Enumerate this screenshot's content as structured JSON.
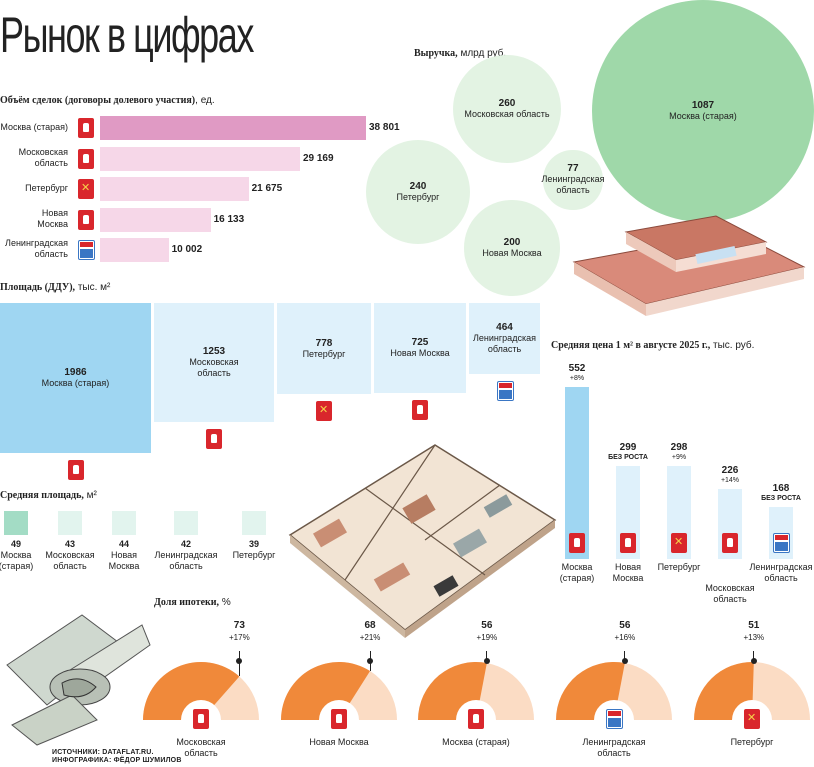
{
  "title": "Рынок в цифрах",
  "deals": {
    "label_bold": "Объём сделок (договоры долевого участия)",
    "label_unit": ", ед.",
    "rows": [
      {
        "name": "Москва (старая)",
        "value": 38801,
        "display": "38 801",
        "crest": "red",
        "color": "#e09ac4"
      },
      {
        "name": "Московская область",
        "value": 29169,
        "display": "29 169",
        "crest": "red",
        "color": "#f6d7e8"
      },
      {
        "name": "Петербург",
        "value": 21675,
        "display": "21 675",
        "crest": "spb",
        "color": "#f6d7e8"
      },
      {
        "name": "Новая Москва",
        "value": 16133,
        "display": "16 133",
        "crest": "red",
        "color": "#f6d7e8"
      },
      {
        "name": "Ленинградская область",
        "value": 10002,
        "display": "10 002",
        "crest": "blue",
        "color": "#f6d7e8"
      }
    ]
  },
  "revenue": {
    "label_bold": "Выручка,",
    "label_unit": " млрд руб.",
    "items": [
      {
        "name": "Москва (старая)",
        "value": 1087,
        "color": "#9fd8a9"
      },
      {
        "name": "Московская область",
        "value": 260,
        "color": "#e3f3e3"
      },
      {
        "name": "Петербург",
        "value": 240,
        "color": "#e3f3e3"
      },
      {
        "name": "Новая Москва",
        "value": 200,
        "color": "#e3f3e3"
      },
      {
        "name": "Ленинградская область",
        "value": 77,
        "color": "#e3f3e3"
      }
    ]
  },
  "area": {
    "label_bold": "Площадь (ДДУ),",
    "label_unit": " тыс. м²",
    "items": [
      {
        "name": "Москва (старая)",
        "value": 1986,
        "color": "#9fd6f2",
        "crest": "red"
      },
      {
        "name": "Московская область",
        "value": 1253,
        "color": "#dff1fb",
        "crest": "red"
      },
      {
        "name": "Петербург",
        "value": 778,
        "color": "#dff1fb",
        "crest": "spb"
      },
      {
        "name": "Новая Москва",
        "value": 725,
        "color": "#dff1fb",
        "crest": "red"
      },
      {
        "name": "Ленинградская область",
        "value": 464,
        "color": "#dff1fb",
        "crest": "blue"
      }
    ]
  },
  "avg_area": {
    "label_bold": "Средняя площадь,",
    "label_unit": " м²",
    "items": [
      {
        "name": "Москва (старая)",
        "value": 49,
        "color": "#a3dcc5"
      },
      {
        "name": "Московская область",
        "value": 43,
        "color": "#e2f4ee"
      },
      {
        "name": "Новая Москва",
        "value": 44,
        "color": "#e2f4ee"
      },
      {
        "name": "Ленинградская область",
        "value": 42,
        "color": "#e2f4ee"
      },
      {
        "name": "Петербург",
        "value": 39,
        "color": "#e2f4ee"
      }
    ]
  },
  "price": {
    "label_bold": "Средняя цена 1 м² в августе 2025 г.,",
    "label_unit": " тыс. руб.",
    "ylim": [
      0,
      552
    ],
    "items": [
      {
        "name": "Москва (старая)",
        "value": 552,
        "change": "+8%",
        "color": "#9fd6f2",
        "crest": "red"
      },
      {
        "name": "Новая Москва",
        "value": 299,
        "change": "БЕЗ РОСТА",
        "color": "#dff1fb",
        "crest": "red"
      },
      {
        "name": "Петербург",
        "value": 298,
        "change": "+9%",
        "color": "#dff1fb",
        "crest": "spb"
      },
      {
        "name": "Московская область",
        "value": 226,
        "change": "+14%",
        "color": "#dff1fb",
        "crest": "red"
      },
      {
        "name": "Ленинградская область",
        "value": 168,
        "change": "БЕЗ РОСТА",
        "color": "#dff1fb",
        "crest": "blue"
      }
    ]
  },
  "mortgage": {
    "label_bold": "Доля ипотеки,",
    "label_unit": " %",
    "items": [
      {
        "name": "Московская область",
        "value": 73,
        "change": "+17%",
        "crest": "red"
      },
      {
        "name": "Новая Москва",
        "value": 68,
        "change": "+21%",
        "crest": "red"
      },
      {
        "name": "Москва (старая)",
        "value": 56,
        "change": "+19%",
        "crest": "red"
      },
      {
        "name": "Ленинградская область",
        "value": 56,
        "change": "+16%",
        "crest": "blue"
      },
      {
        "name": "Петербург",
        "value": 51,
        "change": "+13%",
        "crest": "spb"
      }
    ],
    "fill_color": "#f0893a",
    "rest_color": "#fbdcc4"
  },
  "sources": {
    "line1": "ИСТОЧНИКИ: DATAFLAT.RU.",
    "line2": "ИНФОГРАФИКА: ФЁДОР ШУМИЛОВ"
  },
  "chart_data": [
    {
      "type": "bar",
      "title": "Объём сделок (договоры долевого участия), ед.",
      "categories": [
        "Москва (старая)",
        "Московская область",
        "Петербург",
        "Новая Москва",
        "Ленинградская область"
      ],
      "values": [
        38801,
        29169,
        21675,
        16133,
        10002
      ]
    },
    {
      "type": "bubble",
      "title": "Выручка, млрд руб.",
      "categories": [
        "Москва (старая)",
        "Московская область",
        "Петербург",
        "Новая Москва",
        "Ленинградская область"
      ],
      "values": [
        1087,
        260,
        240,
        200,
        77
      ]
    },
    {
      "type": "treemap",
      "title": "Площадь (ДДУ), тыс. м²",
      "categories": [
        "Москва (старая)",
        "Московская область",
        "Петербург",
        "Новая Москва",
        "Ленинградская область"
      ],
      "values": [
        1986,
        1253,
        778,
        725,
        464
      ]
    },
    {
      "type": "table",
      "title": "Средняя площадь, м²",
      "categories": [
        "Москва (старая)",
        "Московская область",
        "Новая Москва",
        "Ленинградская область",
        "Петербург"
      ],
      "values": [
        49,
        43,
        44,
        42,
        39
      ]
    },
    {
      "type": "bar",
      "title": "Средняя цена 1 м² в августе 2025 г., тыс. руб.",
      "categories": [
        "Москва (старая)",
        "Новая Москва",
        "Петербург",
        "Московская область",
        "Ленинградская область"
      ],
      "values": [
        552,
        299,
        298,
        226,
        168
      ],
      "changes": [
        "+8%",
        "БЕЗ РОСТА",
        "+9%",
        "+14%",
        "БЕЗ РОСТА"
      ]
    },
    {
      "type": "pie",
      "title": "Доля ипотеки, %",
      "categories": [
        "Московская область",
        "Новая Москва",
        "Москва (старая)",
        "Ленинградская область",
        "Петербург"
      ],
      "values": [
        73,
        68,
        56,
        56,
        51
      ],
      "changes": [
        "+17%",
        "+21%",
        "+19%",
        "+16%",
        "+13%"
      ]
    }
  ]
}
